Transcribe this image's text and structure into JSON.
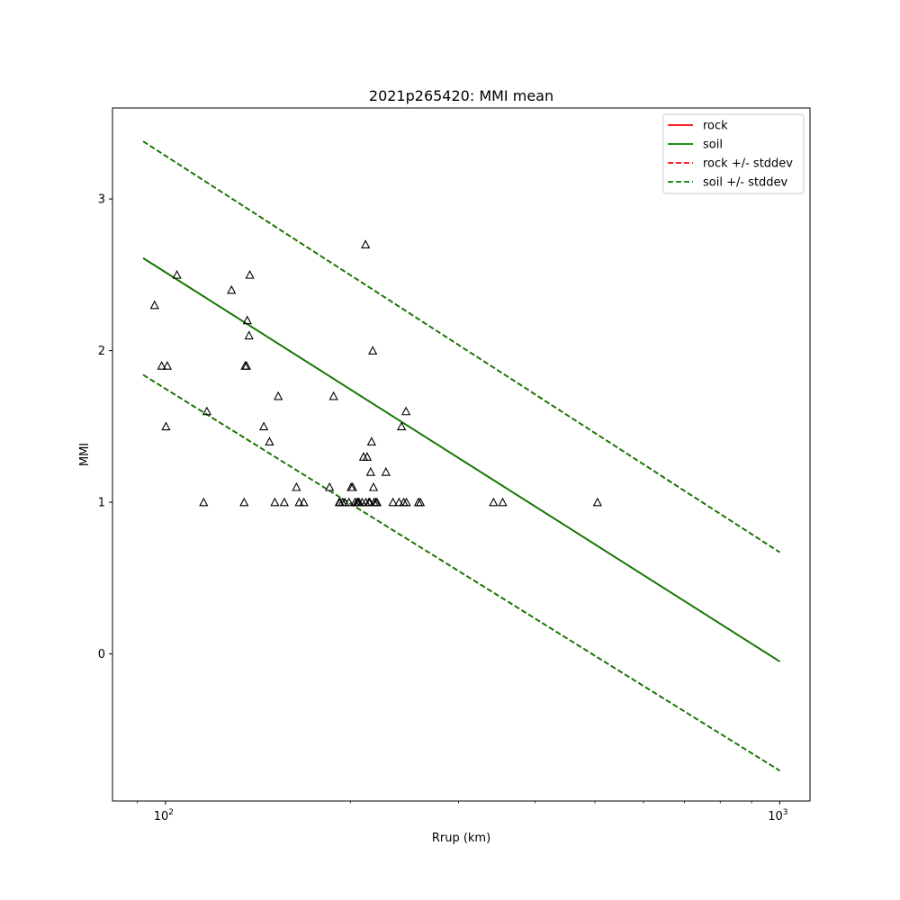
{
  "chart_data": {
    "type": "scatter",
    "title": "2021p265420: MMI mean",
    "xlabel": "Rrup (km)",
    "ylabel": "MMI",
    "xscale": "log",
    "xlim": [
      82,
      1120
    ],
    "ylim": [
      -0.97,
      3.6
    ],
    "x_ticks": [
      {
        "value": 100,
        "label": "10",
        "exp": "2"
      },
      {
        "value": 1000,
        "label": "10",
        "exp": "3"
      }
    ],
    "y_ticks": [
      {
        "value": 0,
        "label": "0"
      },
      {
        "value": 1,
        "label": "1"
      },
      {
        "value": 2,
        "label": "2"
      },
      {
        "value": 3,
        "label": "3"
      }
    ],
    "grid": false,
    "legend": {
      "position": "top-right",
      "entries": [
        {
          "label": "rock",
          "color": "#ff0000",
          "style": "solid"
        },
        {
          "label": "soil",
          "color": "#008000",
          "style": "solid"
        },
        {
          "label": "rock +/- stddev",
          "color": "#ff0000",
          "style": "dashed"
        },
        {
          "label": "soil +/- stddev",
          "color": "#008000",
          "style": "dashed"
        }
      ]
    },
    "lines": [
      {
        "name": "rock",
        "color": "#ff0000",
        "style": "solid",
        "x": [
          92,
          1000
        ],
        "y": [
          2.61,
          -0.05
        ]
      },
      {
        "name": "rock +/- stddev",
        "color": "#ff0000",
        "style": "dashed",
        "x": [
          92,
          1000
        ],
        "y": [
          3.38,
          0.67
        ]
      },
      {
        "name": "rock +/- stddev",
        "color": "#ff0000",
        "style": "dashed",
        "x": [
          92,
          1000
        ],
        "y": [
          1.84,
          -0.77
        ]
      },
      {
        "name": "soil",
        "color": "#008000",
        "style": "solid",
        "x": [
          92,
          1000
        ],
        "y": [
          2.61,
          -0.05
        ]
      },
      {
        "name": "soil +/- stddev",
        "color": "#008000",
        "style": "dashed",
        "x": [
          92,
          1000
        ],
        "y": [
          3.38,
          0.67
        ]
      },
      {
        "name": "soil +/- stddev",
        "color": "#008000",
        "style": "dashed",
        "x": [
          92,
          1000
        ],
        "y": [
          1.84,
          -0.77
        ]
      }
    ],
    "points": {
      "marker": "triangle-open",
      "color": "#000000",
      "x": [
        96,
        98.6,
        100.7,
        100.2,
        104.4,
        115.4,
        116.8,
        128.1,
        134.3,
        134.8,
        135.5,
        135.9,
        136.8,
        137.2,
        144.6,
        147.7,
        150.7,
        152.6,
        156.1,
        163.4,
        165.1,
        168.0,
        185.0,
        187.8,
        191.8,
        192.3,
        194.1,
        195.9,
        199.0,
        200.6,
        201.7,
        203.5,
        205.0,
        205.9,
        206.7,
        209.0,
        210.1,
        211.7,
        212.0,
        213.0,
        214.4,
        215.1,
        215.8,
        216.5,
        217.5,
        218.1,
        218.6,
        220.0,
        221.0,
        228.5,
        234.6,
        240.0,
        242.3,
        244.3,
        246.4,
        246.8,
        258.1,
        260.0,
        342.0,
        354.0,
        505.0
      ],
      "y": [
        2.3,
        1.9,
        1.9,
        1.5,
        2.5,
        1.0,
        1.6,
        2.4,
        1.0,
        1.9,
        1.9,
        2.2,
        2.1,
        2.5,
        1.5,
        1.4,
        1.0,
        1.7,
        1.0,
        1.1,
        1.0,
        1.0,
        1.1,
        1.7,
        1.0,
        1.0,
        1.0,
        1.0,
        1.0,
        1.1,
        1.1,
        1.0,
        1.0,
        1.0,
        1.0,
        1.0,
        1.3,
        2.7,
        1.0,
        1.3,
        1.0,
        1.0,
        1.2,
        1.4,
        2.0,
        1.1,
        1.0,
        1.0,
        1.0,
        1.2,
        1.0,
        1.0,
        1.5,
        1.0,
        1.6,
        1.0,
        1.0,
        1.0,
        1.0,
        1.0,
        1.0
      ]
    }
  }
}
